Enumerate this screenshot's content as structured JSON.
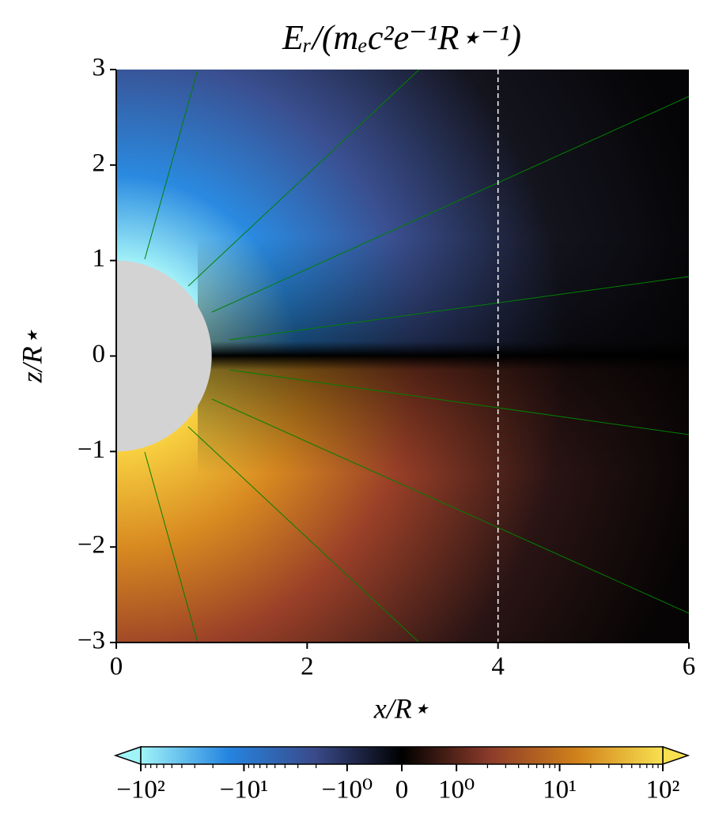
{
  "chart_data": {
    "type": "heatmap",
    "title": "Eᵣ/(mₑc²e⁻¹R⋆⁻¹)",
    "x_label": "x/R⋆",
    "y_label": "z/R⋆",
    "xlim": [
      0,
      6
    ],
    "ylim": [
      -3,
      3
    ],
    "xticks": [
      0,
      2,
      4,
      6
    ],
    "yticks": [
      {
        "value": -3,
        "label": "−3"
      },
      {
        "value": -2,
        "label": "−2"
      },
      {
        "value": -1,
        "label": "−1"
      },
      0,
      1,
      2,
      3
    ],
    "reference_line": {
      "x": 4,
      "color": "#ffffff",
      "style": "dashed"
    },
    "star": {
      "radius": 1,
      "color": "#d3d3d3"
    },
    "field_line_color": "#008000",
    "colorbar": {
      "scale": "symlog",
      "linthresh": 1,
      "linscale": 0.53,
      "clim": [
        -100,
        100
      ],
      "colors": [
        "#a0f4f8",
        "#2585e0",
        "#3a4a8a",
        "#000000",
        "#8a3a2a",
        "#d0801a",
        "#f8e050"
      ],
      "ticks": [
        {
          "value": -100,
          "label": "−10²"
        },
        {
          "value": -10,
          "label": "−10¹"
        },
        {
          "value": -1,
          "label": "−10⁰"
        },
        0,
        {
          "value": 1,
          "label": "10⁰"
        },
        {
          "value": 10,
          "label": "10¹"
        },
        {
          "value": 100,
          "label": "10²"
        }
      ]
    }
  }
}
